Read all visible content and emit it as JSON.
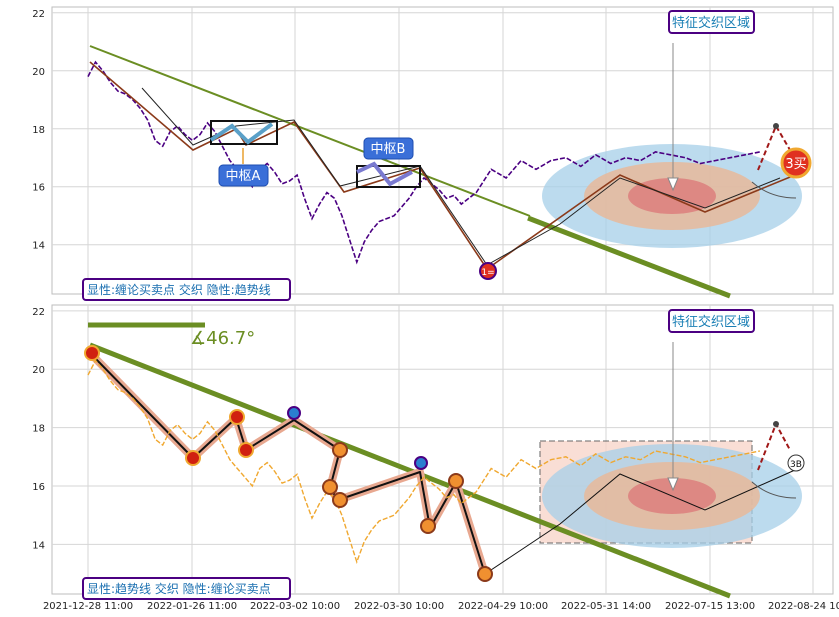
{
  "chart_data": [
    {
      "type": "line",
      "panel": "top",
      "ylim": [
        12.3,
        22.2
      ],
      "yticks": [
        "14",
        "16",
        "18",
        "20",
        "22"
      ],
      "grid": true,
      "legend_text": "显性:缠论买卖点 交织 隐性:趋势线",
      "annotation_region": "特征交织区域",
      "center_a": "中枢A",
      "center_b": "中枢B",
      "signal_buy1": "1=",
      "signal_buy3": "3买",
      "series": [
        {
          "color": "#4b0082",
          "x": [
            0,
            2,
            4,
            6,
            8,
            10,
            12,
            14,
            16,
            18,
            20,
            22,
            24,
            26,
            28,
            30,
            32,
            34,
            36,
            38,
            40,
            42,
            44,
            46,
            48,
            50,
            52,
            54,
            56,
            58,
            60,
            62,
            64,
            66,
            68,
            70,
            72,
            74,
            76,
            78,
            80,
            82,
            84,
            86,
            88,
            90,
            92,
            94,
            96,
            98,
            100,
            104,
            108,
            112,
            116,
            120,
            124,
            128,
            132,
            136,
            140,
            144,
            148,
            152,
            156,
            160,
            164,
            168,
            172,
            176,
            180
          ],
          "values": [
            19.8,
            20.3,
            20.0,
            19.6,
            19.3,
            19.2,
            19.0,
            18.7,
            18.3,
            17.6,
            17.4,
            17.9,
            18.1,
            17.8,
            17.6,
            17.8,
            18.2,
            17.9,
            17.4,
            16.9,
            16.6,
            16.3,
            16.0,
            16.6,
            16.8,
            16.5,
            16.1,
            16.2,
            16.4,
            15.6,
            14.9,
            15.4,
            15.8,
            15.6,
            15.0,
            14.2,
            13.4,
            14.1,
            14.5,
            14.8,
            14.9,
            15.0,
            15.3,
            15.6,
            16.0,
            16.3,
            16.1,
            15.9,
            15.6,
            15.7,
            15.4,
            15.8,
            16.6,
            16.3,
            16.9,
            16.6,
            16.9,
            17.0,
            16.7,
            17.1,
            16.8,
            17.0,
            16.9,
            17.2,
            17.1,
            17.0,
            16.8,
            16.9,
            17.0,
            17.1,
            17.2
          ]
        }
      ]
    },
    {
      "type": "line",
      "panel": "bottom",
      "ylim": [
        12.3,
        22.2
      ],
      "yticks": [
        "14",
        "16",
        "18",
        "20",
        "22"
      ],
      "grid": true,
      "legend_text": "显性:趋势线 交织 隐性:缠论买卖点",
      "annotation_region": "特征交织区域",
      "angle_label": "∡46.7°",
      "signal_3b": "3B",
      "xticks": [
        "2021-12-28 11:00",
        "2022-01-26 11:00",
        "2022-03-02 10:00",
        "2022-03-30 10:00",
        "2022-04-29 10:00",
        "2022-05-31 14:00",
        "2022-07-15 13:00",
        "2022-08-24 10:00"
      ],
      "series": [
        {
          "color": "#f0a830",
          "x": [
            0,
            2,
            4,
            6,
            8,
            10,
            12,
            14,
            16,
            18,
            20,
            22,
            24,
            26,
            28,
            30,
            32,
            34,
            36,
            38,
            40,
            42,
            44,
            46,
            48,
            50,
            52,
            54,
            56,
            58,
            60,
            62,
            64,
            66,
            68,
            70,
            72,
            74,
            76,
            78,
            80,
            82,
            84,
            86,
            88,
            90,
            92,
            94,
            96,
            98,
            100,
            104,
            108,
            112,
            116,
            120,
            124,
            128,
            132,
            136,
            140,
            144,
            148,
            152,
            156,
            160,
            164,
            168,
            172,
            176,
            180
          ],
          "values": [
            19.8,
            20.3,
            20.0,
            19.6,
            19.3,
            19.2,
            19.0,
            18.7,
            18.3,
            17.6,
            17.4,
            17.9,
            18.1,
            17.8,
            17.6,
            17.8,
            18.2,
            17.9,
            17.4,
            16.9,
            16.6,
            16.3,
            16.0,
            16.6,
            16.8,
            16.5,
            16.1,
            16.2,
            16.4,
            15.6,
            14.9,
            15.4,
            15.8,
            15.6,
            15.0,
            14.2,
            13.4,
            14.1,
            14.5,
            14.8,
            14.9,
            15.0,
            15.3,
            15.6,
            16.0,
            16.3,
            16.1,
            15.9,
            15.6,
            15.7,
            15.4,
            15.8,
            16.6,
            16.3,
            16.9,
            16.6,
            16.9,
            17.0,
            16.7,
            17.1,
            16.8,
            17.0,
            16.9,
            17.2,
            17.1,
            17.0,
            16.8,
            16.9,
            17.0,
            17.1,
            17.2
          ]
        }
      ]
    }
  ]
}
